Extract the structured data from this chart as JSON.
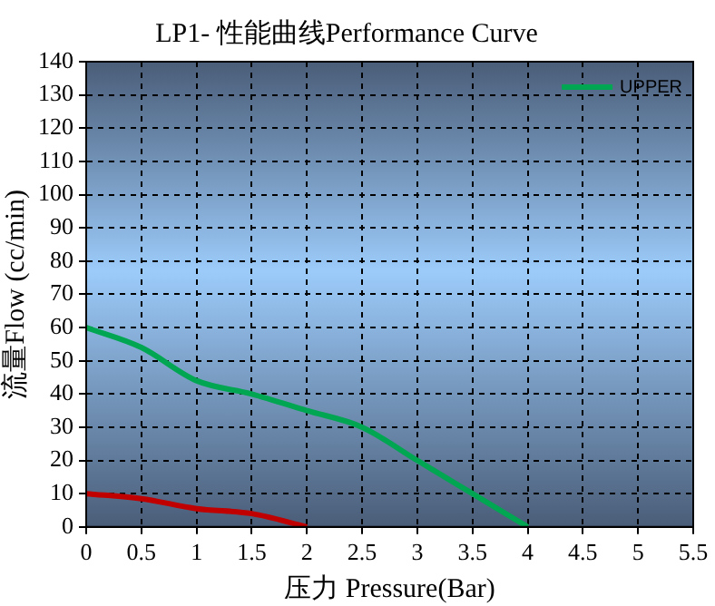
{
  "chart_data": {
    "type": "line",
    "title": "LP1- 性能曲线Performance Curve",
    "xlabel": "压力 Pressure(Bar)",
    "ylabel": "流量Flow (cc/min)",
    "series": [
      {
        "name": "UPPER",
        "color": "#00a651",
        "x": [
          0,
          0.5,
          1,
          1.5,
          2,
          2.5,
          3,
          3.5,
          4
        ],
        "values": [
          60,
          54,
          44,
          40,
          35,
          30,
          20,
          10,
          0
        ]
      },
      {
        "color": "#c00000",
        "x": [
          0,
          0.5,
          1,
          1.5,
          2
        ],
        "values": [
          10,
          8.5,
          5.5,
          4,
          0
        ]
      }
    ],
    "xlim": [
      0,
      5.5
    ],
    "xticks": [
      0,
      0.5,
      1,
      1.5,
      2,
      2.5,
      3,
      3.5,
      4,
      4.5,
      5,
      5.5
    ],
    "ylim": [
      0,
      140
    ],
    "yticks": [
      0,
      10,
      20,
      30,
      40,
      50,
      60,
      70,
      80,
      90,
      100,
      110,
      120,
      130,
      140
    ],
    "grid": true,
    "legend": "top right",
    "marker": "none",
    "line_style": "solid"
  }
}
